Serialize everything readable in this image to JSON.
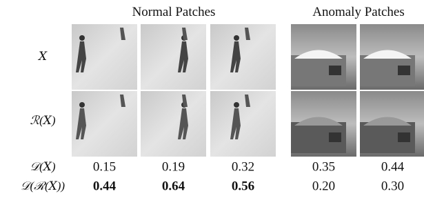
{
  "groups": [
    {
      "title": "Normal Patches"
    },
    {
      "title": "Anomaly Patches"
    }
  ],
  "image_rows": [
    {
      "label": "𝑋"
    },
    {
      "label": "ℛ(𝑋)"
    }
  ],
  "score_rows": [
    {
      "label": "𝒟(𝑋)",
      "values": [
        "0.15",
        "0.19",
        "0.32",
        "0.35",
        "0.44"
      ],
      "bold": [
        false,
        false,
        false,
        false,
        false
      ]
    },
    {
      "label": "𝒟(ℛ(𝑋))",
      "values": [
        "0.44",
        "0.64",
        "0.56",
        "0.20",
        "0.30"
      ],
      "bold": [
        true,
        true,
        true,
        false,
        false
      ]
    }
  ]
}
